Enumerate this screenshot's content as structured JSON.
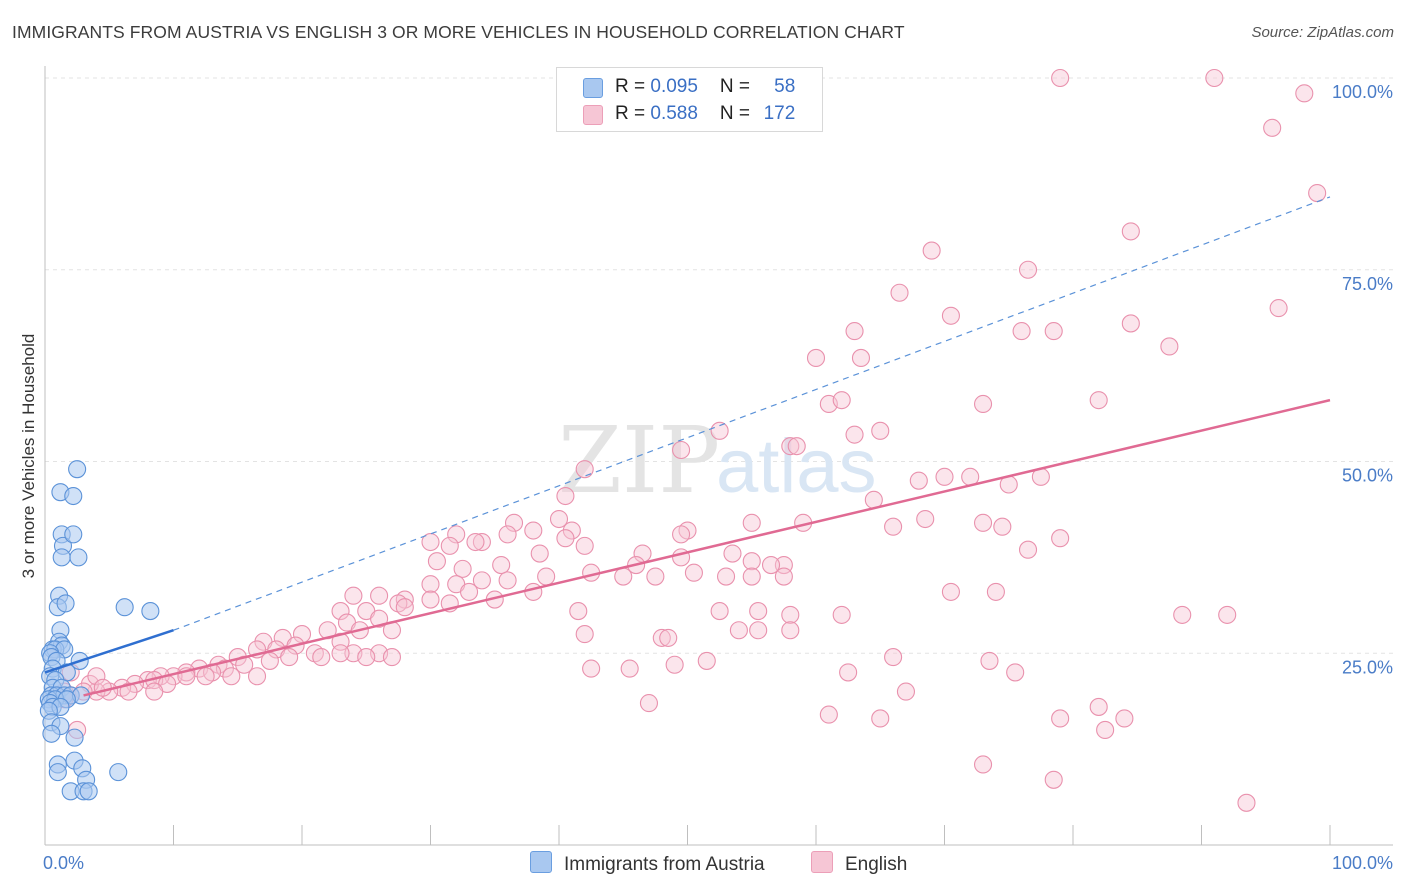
{
  "chart_data": {
    "type": "scatter",
    "title": "IMMIGRANTS FROM AUSTRIA VS ENGLISH 3 OR MORE VEHICLES IN HOUSEHOLD CORRELATION CHART",
    "source": "Source: ZipAtlas.com",
    "ylabel": "3 or more Vehicles in Household",
    "xlabel": "",
    "xlim": [
      0,
      100
    ],
    "ylim": [
      0,
      100
    ],
    "x_tick_labels": {
      "left": "0.0%",
      "right": "100.0%"
    },
    "y_tick_labels": [
      {
        "value": 25,
        "label": "25.0%"
      },
      {
        "value": 50,
        "label": "50.0%"
      },
      {
        "value": 75,
        "label": "75.0%"
      },
      {
        "value": 100,
        "label": "100.0%"
      }
    ],
    "watermark": {
      "part1": "ZIP",
      "part2": "atlas"
    },
    "colors": {
      "blue_fill": "#a9c8f0",
      "blue_stroke": "#5b92d8",
      "blue_line": "#2f6fd0",
      "pink_fill": "#f6c6d5",
      "pink_stroke": "#e991ad",
      "pink_line": "#e06a93",
      "grid": "#e3e3e3",
      "tick_label": "#4a7cc7"
    },
    "legend": [
      {
        "r_label": "R = ",
        "r_value": "0.095",
        "n_label": "N = ",
        "n_value": "58"
      },
      {
        "r_label": "R = ",
        "r_value": "0.588",
        "n_label": "N = ",
        "n_value": "172"
      }
    ],
    "series": [
      {
        "name": "Immigrants from Austria",
        "trend": {
          "x0": 0,
          "y0": 22.5,
          "x1": 10,
          "y1": 28,
          "dash_x1": 100,
          "dash_y1": 84.5
        },
        "points": [
          [
            1.2,
            46
          ],
          [
            1.3,
            40.5
          ],
          [
            1.4,
            39
          ],
          [
            1.3,
            37.5
          ],
          [
            2.2,
            40.5
          ],
          [
            2.6,
            37.5
          ],
          [
            2.5,
            49
          ],
          [
            2.2,
            45.5
          ],
          [
            1.1,
            32.5
          ],
          [
            1.0,
            31
          ],
          [
            1.6,
            31.5
          ],
          [
            6.2,
            31
          ],
          [
            8.2,
            30.5
          ],
          [
            1.2,
            28
          ],
          [
            1.1,
            26.5
          ],
          [
            1.3,
            26
          ],
          [
            0.6,
            25.5
          ],
          [
            0.8,
            25.5
          ],
          [
            1.5,
            25.5
          ],
          [
            0.4,
            25
          ],
          [
            0.5,
            24.5
          ],
          [
            0.9,
            24
          ],
          [
            2.7,
            24
          ],
          [
            0.6,
            23
          ],
          [
            1.7,
            22.5
          ],
          [
            0.4,
            22
          ],
          [
            0.8,
            21.5
          ],
          [
            0.6,
            20.5
          ],
          [
            1.3,
            20.5
          ],
          [
            0.5,
            19.5
          ],
          [
            0.9,
            19.5
          ],
          [
            1.5,
            19.5
          ],
          [
            2.0,
            19.5
          ],
          [
            2.8,
            19.5
          ],
          [
            0.3,
            19
          ],
          [
            0.8,
            19
          ],
          [
            1.7,
            19
          ],
          [
            0.4,
            18.5
          ],
          [
            0.6,
            18
          ],
          [
            1.2,
            18
          ],
          [
            0.3,
            17.5
          ],
          [
            0.5,
            16
          ],
          [
            1.2,
            15.5
          ],
          [
            0.5,
            14.5
          ],
          [
            2.3,
            14
          ],
          [
            1.0,
            10.5
          ],
          [
            2.3,
            11
          ],
          [
            2.9,
            10
          ],
          [
            1.0,
            9.5
          ],
          [
            3.2,
            8.5
          ],
          [
            5.7,
            9.5
          ],
          [
            2.0,
            7
          ],
          [
            3.0,
            7
          ],
          [
            3.4,
            7
          ]
        ]
      },
      {
        "name": "English",
        "trend": {
          "x0": 3,
          "y0": 19.5,
          "x1": 100,
          "y1": 58
        },
        "points": [
          [
            79,
            100
          ],
          [
            91,
            100
          ],
          [
            98,
            98
          ],
          [
            95.5,
            93.5
          ],
          [
            99,
            85
          ],
          [
            84.5,
            80
          ],
          [
            69,
            77.5
          ],
          [
            76.5,
            75
          ],
          [
            66.5,
            72
          ],
          [
            70.5,
            69
          ],
          [
            84.5,
            68
          ],
          [
            96,
            70
          ],
          [
            63,
            67
          ],
          [
            76,
            67
          ],
          [
            78.5,
            67
          ],
          [
            87.5,
            65
          ],
          [
            60,
            63.5
          ],
          [
            63.5,
            63.5
          ],
          [
            61,
            57.5
          ],
          [
            62,
            58
          ],
          [
            73,
            57.5
          ],
          [
            82,
            58
          ],
          [
            65,
            54
          ],
          [
            63,
            53.5
          ],
          [
            58,
            52
          ],
          [
            58.5,
            52
          ],
          [
            49.5,
            51.5
          ],
          [
            52.5,
            54
          ],
          [
            42,
            49
          ],
          [
            68,
            47.5
          ],
          [
            70,
            48
          ],
          [
            72,
            48
          ],
          [
            75,
            47
          ],
          [
            77.5,
            48
          ],
          [
            40.5,
            45.5
          ],
          [
            64.5,
            45
          ],
          [
            36.5,
            42
          ],
          [
            40,
            42.5
          ],
          [
            50,
            41
          ],
          [
            55,
            42
          ],
          [
            68.5,
            42.5
          ],
          [
            73,
            42
          ],
          [
            74.5,
            41.5
          ],
          [
            66,
            41.5
          ],
          [
            59,
            42
          ],
          [
            41,
            41
          ],
          [
            38,
            41
          ],
          [
            40.5,
            40
          ],
          [
            32,
            40.5
          ],
          [
            36,
            40.5
          ],
          [
            49.5,
            40.5
          ],
          [
            31.5,
            39
          ],
          [
            34,
            39.5
          ],
          [
            42,
            39
          ],
          [
            33.5,
            39.5
          ],
          [
            30,
            39.5
          ],
          [
            38.5,
            38
          ],
          [
            53.5,
            38
          ],
          [
            79,
            40
          ],
          [
            76.5,
            38.5
          ],
          [
            46.5,
            38
          ],
          [
            49.5,
            37.5
          ],
          [
            55,
            37
          ],
          [
            57.5,
            36.5
          ],
          [
            56.5,
            36.5
          ],
          [
            46,
            36.5
          ],
          [
            30.5,
            37
          ],
          [
            32.5,
            36
          ],
          [
            35.5,
            36.5
          ],
          [
            42.5,
            35.5
          ],
          [
            39,
            35
          ],
          [
            45,
            35
          ],
          [
            47.5,
            35
          ],
          [
            50.5,
            35.5
          ],
          [
            53,
            35
          ],
          [
            55,
            35
          ],
          [
            57.5,
            35
          ],
          [
            30,
            34
          ],
          [
            32,
            34
          ],
          [
            34,
            34.5
          ],
          [
            36,
            34.5
          ],
          [
            24,
            32.5
          ],
          [
            26,
            32.5
          ],
          [
            28,
            32
          ],
          [
            30,
            32
          ],
          [
            31.5,
            31.5
          ],
          [
            33,
            33
          ],
          [
            35,
            32
          ],
          [
            38,
            33
          ],
          [
            27.5,
            31.5
          ],
          [
            25,
            30.5
          ],
          [
            23,
            30.5
          ],
          [
            23.5,
            29
          ],
          [
            26,
            29.5
          ],
          [
            28,
            31
          ],
          [
            24.5,
            28
          ],
          [
            27,
            28
          ],
          [
            41.5,
            30.5
          ],
          [
            55.5,
            30.5
          ],
          [
            52.5,
            30.5
          ],
          [
            58,
            30
          ],
          [
            88.5,
            30
          ],
          [
            92,
            30
          ],
          [
            55.5,
            28
          ],
          [
            62,
            30
          ],
          [
            74,
            33
          ],
          [
            70.5,
            33
          ],
          [
            54,
            28
          ],
          [
            58,
            28
          ],
          [
            48,
            27
          ],
          [
            42,
            27.5
          ],
          [
            48.5,
            27
          ],
          [
            20,
            27.5
          ],
          [
            22,
            28
          ],
          [
            18.5,
            27
          ],
          [
            19.5,
            26
          ],
          [
            17,
            26.5
          ],
          [
            23,
            26.5
          ],
          [
            16.5,
            25.5
          ],
          [
            18,
            25.5
          ],
          [
            21,
            25
          ],
          [
            24,
            25
          ],
          [
            26,
            25
          ],
          [
            15,
            24.5
          ],
          [
            17.5,
            24
          ],
          [
            19,
            24.5
          ],
          [
            21.5,
            24.5
          ],
          [
            23,
            25
          ],
          [
            25,
            24.5
          ],
          [
            27,
            24.5
          ],
          [
            13.5,
            23.5
          ],
          [
            15.5,
            23.5
          ],
          [
            14,
            23
          ],
          [
            12,
            23
          ],
          [
            13,
            22.5
          ],
          [
            11,
            22.5
          ],
          [
            10,
            22
          ],
          [
            9,
            22
          ],
          [
            8,
            21.5
          ],
          [
            11,
            22
          ],
          [
            12.5,
            22
          ],
          [
            14.5,
            22
          ],
          [
            16.5,
            22
          ],
          [
            7,
            21
          ],
          [
            6,
            20.5
          ],
          [
            5,
            20
          ],
          [
            4,
            20
          ],
          [
            6.5,
            20
          ],
          [
            8.5,
            21.5
          ],
          [
            9.5,
            21
          ],
          [
            3.5,
            21
          ],
          [
            4,
            22
          ],
          [
            4.5,
            20.5
          ],
          [
            3,
            20
          ],
          [
            1.5,
            20
          ],
          [
            2,
            19.5
          ],
          [
            1.5,
            19
          ],
          [
            2.5,
            15
          ],
          [
            2,
            22.5
          ],
          [
            8.5,
            20
          ],
          [
            42.5,
            23
          ],
          [
            45.5,
            23
          ],
          [
            49,
            23.5
          ],
          [
            51.5,
            24
          ],
          [
            66,
            24.5
          ],
          [
            62.5,
            22.5
          ],
          [
            67,
            20
          ],
          [
            47,
            18.5
          ],
          [
            61,
            17
          ],
          [
            75.5,
            22.5
          ],
          [
            73.5,
            24
          ],
          [
            79,
            16.5
          ],
          [
            82,
            18
          ],
          [
            82.5,
            15
          ],
          [
            84,
            16.5
          ],
          [
            65,
            16.5
          ],
          [
            73,
            10.5
          ],
          [
            78.5,
            8.5
          ],
          [
            93.5,
            5.5
          ]
        ]
      }
    ]
  }
}
